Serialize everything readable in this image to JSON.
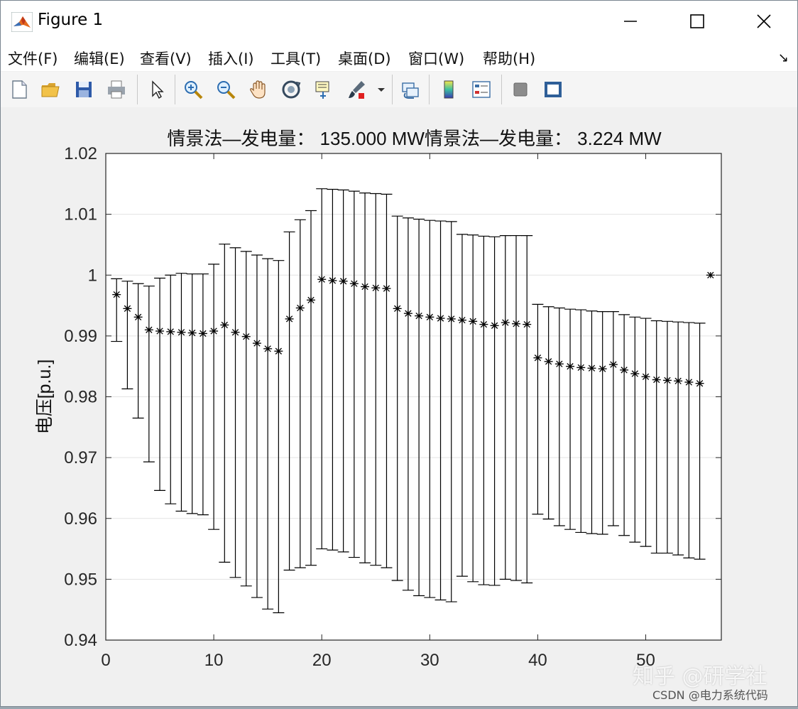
{
  "window": {
    "title": "Figure 1"
  },
  "menu": [
    "文件(F)",
    "编辑(E)",
    "查看(V)",
    "插入(I)",
    "工具(T)",
    "桌面(D)",
    "窗口(W)",
    "帮助(H)"
  ],
  "toolbar": {
    "icons": [
      "new-figure-icon",
      "open-file-icon",
      "save-icon",
      "print-icon",
      "pointer-icon",
      "zoom-in-icon",
      "zoom-out-icon",
      "pan-hand-icon",
      "rotate-3d-icon",
      "data-cursor-icon",
      "brush-icon",
      "link-plot-icon",
      "colorbar-icon",
      "legend-icon",
      "hide-plot-tools-icon",
      "show-plot-tools-icon"
    ]
  },
  "chart_data": {
    "type": "scatter",
    "title": "情景法—发电量： 135.000 MW情景法—发电量： 3.224 MW",
    "xlabel": "",
    "ylabel": "电压[p.u.]",
    "xlim": [
      0,
      57
    ],
    "ylim": [
      0.94,
      1.02
    ],
    "xticks": [
      "0",
      "10",
      "20",
      "30",
      "40",
      "50"
    ],
    "yticks": [
      "0.94",
      "0.95",
      "0.96",
      "0.97",
      "0.98",
      "0.99",
      "1",
      "1.01",
      "1.02"
    ],
    "grid": "horizontal",
    "marker": "*",
    "x": [
      1,
      2,
      3,
      4,
      5,
      6,
      7,
      8,
      9,
      10,
      11,
      12,
      13,
      14,
      15,
      16,
      17,
      18,
      19,
      20,
      21,
      22,
      23,
      24,
      25,
      26,
      27,
      28,
      29,
      30,
      31,
      32,
      33,
      34,
      35,
      36,
      37,
      38,
      39,
      40,
      41,
      42,
      43,
      44,
      45,
      46,
      47,
      48,
      49,
      50,
      51,
      52,
      53,
      54,
      55,
      56
    ],
    "y": [
      0.9968,
      0.9945,
      0.9931,
      0.991,
      0.9908,
      0.9907,
      0.9906,
      0.9905,
      0.9904,
      0.9908,
      0.9918,
      0.9906,
      0.9899,
      0.9888,
      0.9879,
      0.9875,
      0.9928,
      0.9946,
      0.9959,
      0.9993,
      0.9991,
      0.999,
      0.9986,
      0.9981,
      0.9979,
      0.9978,
      0.9945,
      0.9937,
      0.9933,
      0.9931,
      0.9929,
      0.9928,
      0.9926,
      0.9924,
      0.9919,
      0.9917,
      0.9922,
      0.992,
      0.9919,
      0.9864,
      0.9858,
      0.9854,
      0.985,
      0.9848,
      0.9847,
      0.9846,
      0.9853,
      0.9844,
      0.9838,
      0.9833,
      0.9828,
      0.9827,
      0.9826,
      0.9824,
      0.9822,
      1.0
    ],
    "err_upper": [
      0.9994,
      0.999,
      0.9986,
      0.9982,
      0.9995,
      1.0,
      1.0003,
      1.0002,
      1.0002,
      1.0018,
      1.0051,
      1.0045,
      1.0039,
      1.0033,
      1.0027,
      1.0024,
      1.0071,
      1.0091,
      1.0106,
      1.0142,
      1.0141,
      1.014,
      1.0138,
      1.0135,
      1.0134,
      1.0133,
      1.0097,
      1.0094,
      1.0092,
      1.009,
      1.0089,
      1.0088,
      1.0067,
      1.0066,
      1.0064,
      1.0063,
      1.0065,
      1.0065,
      1.0065,
      0.9952,
      0.9948,
      0.9946,
      0.9944,
      0.9943,
      0.9941,
      0.994,
      0.994,
      0.9935,
      0.9931,
      0.9929,
      0.9925,
      0.9924,
      0.9923,
      0.9922,
      0.9921,
      null
    ],
    "err_lower": [
      0.9891,
      0.9813,
      0.9765,
      0.9693,
      0.9646,
      0.9624,
      0.9612,
      0.9608,
      0.9606,
      0.9582,
      0.9528,
      0.9503,
      0.9489,
      0.947,
      0.9451,
      0.9445,
      0.9515,
      0.9519,
      0.9523,
      0.955,
      0.9548,
      0.9545,
      0.9536,
      0.9527,
      0.9523,
      0.9519,
      0.9498,
      0.9482,
      0.9473,
      0.947,
      0.9466,
      0.9463,
      0.9505,
      0.9496,
      0.9491,
      0.949,
      0.95,
      0.9498,
      0.9494,
      0.9607,
      0.9599,
      0.9588,
      0.9582,
      0.9577,
      0.9575,
      0.9574,
      0.9588,
      0.9572,
      0.9561,
      0.9554,
      0.9543,
      0.9543,
      0.954,
      0.9535,
      0.9533,
      null
    ]
  },
  "watermark": {
    "main": "知乎 @研学社",
    "sub": "CSDN @电力系统代码"
  }
}
